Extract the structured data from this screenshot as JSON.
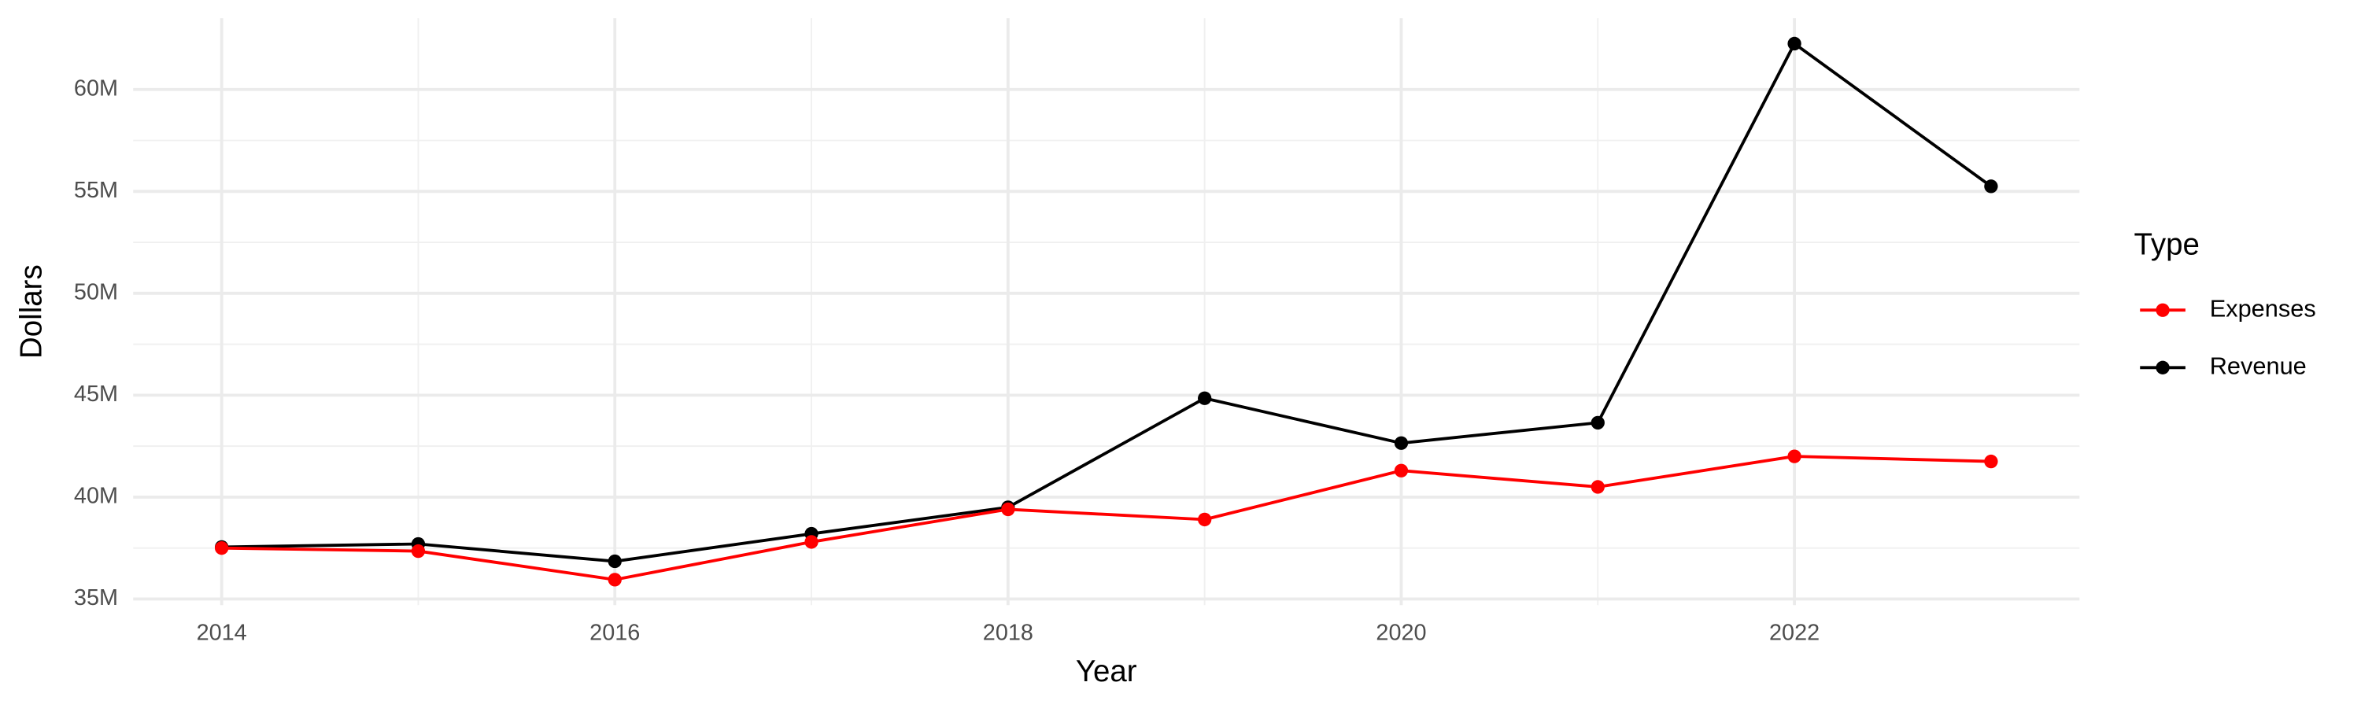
{
  "chart_data": {
    "type": "line",
    "x_label": "Year",
    "y_label": "Dollars",
    "x": [
      2014,
      2015,
      2016,
      2017,
      2018,
      2019,
      2020,
      2021,
      2022,
      2023
    ],
    "series": [
      {
        "name": "Expenses",
        "color": "#ff0000",
        "values": [
          37500000,
          37350000,
          35950000,
          37800000,
          39400000,
          38900000,
          41300000,
          40500000,
          42000000,
          41750000
        ]
      },
      {
        "name": "Revenue",
        "color": "#000000",
        "values": [
          37550000,
          37700000,
          36850000,
          38200000,
          39500000,
          44850000,
          42650000,
          43650000,
          62250000,
          55250000
        ]
      }
    ],
    "xlim": [
      2013.55,
      2023.45
    ],
    "xticks": [
      2014,
      2016,
      2018,
      2020,
      2022
    ],
    "ylim": [
      34700000,
      63500000
    ],
    "yticks": [
      {
        "value": 35000000,
        "label": "35M"
      },
      {
        "value": 40000000,
        "label": "40M"
      },
      {
        "value": 45000000,
        "label": "45M"
      },
      {
        "value": 50000000,
        "label": "50M"
      },
      {
        "value": 55000000,
        "label": "55M"
      },
      {
        "value": 60000000,
        "label": "60M"
      }
    ],
    "grid": true,
    "legend_title": "Type",
    "legend": "right"
  }
}
